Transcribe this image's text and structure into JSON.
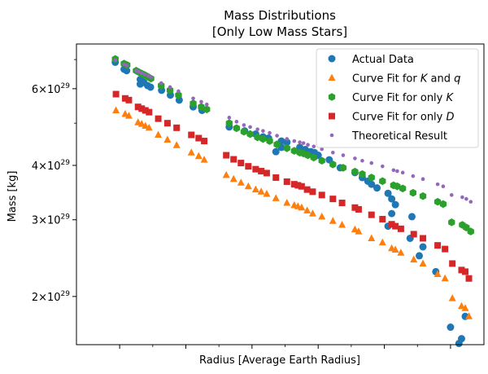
{
  "chart_data": {
    "type": "scatter",
    "title_lines": [
      "Mass Distributions",
      "[Only Low Mass Stars]"
    ],
    "xlabel": "Radius [Average Earth Radius]",
    "ylabel": "Mass [kg]",
    "y_scale": "log",
    "xlim": [
      0.0,
      1.0
    ],
    "ylim": [
      1.55e+29,
      7.6e+29
    ],
    "y_ticks": [
      {
        "value": 2e+29,
        "mantissa": "2",
        "exponent": "29"
      },
      {
        "value": 3e+29,
        "mantissa": "3",
        "exponent": "29"
      },
      {
        "value": 4e+29,
        "mantissa": "4",
        "exponent": "29"
      },
      {
        "value": 6e+29,
        "mantissa": "6",
        "exponent": "29"
      }
    ],
    "y_minor_ticks": [
      5e+29,
      7e+29
    ],
    "x_ticks": [
      0.06,
      0.24,
      0.42,
      0.6,
      0.78,
      0.96
    ],
    "x_minor_ticks": [
      0.15,
      0.33,
      0.51,
      0.69,
      0.87
    ],
    "times_symbol": "×",
    "base": "10",
    "legend_position": "top-right",
    "series": [
      {
        "name": "Actual Data",
        "legend_parts": [
          "Actual Data"
        ],
        "marker": "circle",
        "color": "#1f77b4",
        "points": [
          [
            0.048,
            6.9e+29
          ],
          [
            0.072,
            6.65e+29
          ],
          [
            0.079,
            6.6e+29
          ],
          [
            0.116,
            6.3e+29
          ],
          [
            0.12,
            6.25e+29
          ],
          [
            0.116,
            6.15e+29
          ],
          [
            0.126,
            6.2e+29
          ],
          [
            0.136,
            6.1e+29
          ],
          [
            0.144,
            6.05e+29
          ],
          [
            0.174,
            5.95e+29
          ],
          [
            0.198,
            5.8e+29
          ],
          [
            0.222,
            5.65e+29
          ],
          [
            0.26,
            5.45e+29
          ],
          [
            0.284,
            5.35e+29
          ],
          [
            0.358,
            4.9e+29
          ],
          [
            0.4,
            4.8e+29
          ],
          [
            0.43,
            4.72e+29
          ],
          [
            0.45,
            4.65e+29
          ],
          [
            0.465,
            4.62e+29
          ],
          [
            0.5,
            4.55e+29
          ],
          [
            0.515,
            4.52e+29
          ],
          [
            0.5,
            4.4e+29
          ],
          [
            0.485,
            4.3e+29
          ],
          [
            0.55,
            4.4e+29
          ],
          [
            0.565,
            4.35e+29
          ],
          [
            0.58,
            4.3e+29
          ],
          [
            0.59,
            4.28e+29
          ],
          [
            0.6,
            4.22e+29
          ],
          [
            0.63,
            4.12e+29
          ],
          [
            0.66,
            3.95e+29
          ],
          [
            0.7,
            3.85e+29
          ],
          [
            0.72,
            3.75e+29
          ],
          [
            0.735,
            3.68e+29
          ],
          [
            0.745,
            3.62e+29
          ],
          [
            0.76,
            3.55e+29
          ],
          [
            0.79,
            3.45e+29
          ],
          [
            0.8,
            3.35e+29
          ],
          [
            0.81,
            3.25e+29
          ],
          [
            0.8,
            3.1e+29
          ],
          [
            0.79,
            2.9e+29
          ],
          [
            0.855,
            3.05e+29
          ],
          [
            0.85,
            2.72e+29
          ],
          [
            0.885,
            2.6e+29
          ],
          [
            0.875,
            2.48e+29
          ],
          [
            0.92,
            2.28e+29
          ],
          [
            0.96,
            1.7e+29
          ],
          [
            0.983,
            1.56e+29
          ],
          [
            0.99,
            1.6e+29
          ],
          [
            1.0,
            1.8e+29
          ]
        ]
      },
      {
        "name": "Curve Fit for K and q",
        "legend_parts": [
          "Curve Fit for ",
          "K",
          " and ",
          "q"
        ],
        "marker": "triangle",
        "color": "#ff7f0e",
        "points": [
          [
            0.05,
            5.35e+29
          ],
          [
            0.075,
            5.25e+29
          ],
          [
            0.085,
            5.2e+29
          ],
          [
            0.11,
            5.02e+29
          ],
          [
            0.12,
            4.98e+29
          ],
          [
            0.13,
            4.93e+29
          ],
          [
            0.14,
            4.88e+29
          ],
          [
            0.165,
            4.7e+29
          ],
          [
            0.19,
            4.58e+29
          ],
          [
            0.215,
            4.45e+29
          ],
          [
            0.255,
            4.28e+29
          ],
          [
            0.275,
            4.2e+29
          ],
          [
            0.29,
            4.12e+29
          ],
          [
            0.35,
            3.8e+29
          ],
          [
            0.37,
            3.72e+29
          ],
          [
            0.39,
            3.65e+29
          ],
          [
            0.41,
            3.58e+29
          ],
          [
            0.43,
            3.52e+29
          ],
          [
            0.445,
            3.48e+29
          ],
          [
            0.46,
            3.44e+29
          ],
          [
            0.485,
            3.36e+29
          ],
          [
            0.515,
            3.28e+29
          ],
          [
            0.535,
            3.24e+29
          ],
          [
            0.545,
            3.22e+29
          ],
          [
            0.555,
            3.2e+29
          ],
          [
            0.57,
            3.15e+29
          ],
          [
            0.585,
            3.1e+29
          ],
          [
            0.61,
            3.05e+29
          ],
          [
            0.64,
            2.98e+29
          ],
          [
            0.665,
            2.92e+29
          ],
          [
            0.7,
            2.85e+29
          ],
          [
            0.71,
            2.82e+29
          ],
          [
            0.745,
            2.72e+29
          ],
          [
            0.775,
            2.66e+29
          ],
          [
            0.8,
            2.58e+29
          ],
          [
            0.81,
            2.56e+29
          ],
          [
            0.825,
            2.52e+29
          ],
          [
            0.86,
            2.43e+29
          ],
          [
            0.885,
            2.38e+29
          ],
          [
            0.925,
            2.25e+29
          ],
          [
            0.945,
            2.2e+29
          ],
          [
            0.965,
            1.98e+29
          ],
          [
            0.99,
            1.9e+29
          ],
          [
            1.0,
            1.88e+29
          ],
          [
            1.01,
            1.8e+29
          ]
        ]
      },
      {
        "name": "Curve Fit for only K",
        "legend_parts": [
          "Curve Fit for only ",
          "K"
        ],
        "marker": "hexagon",
        "color": "#2ca02c",
        "points": [
          [
            0.048,
            7.02e+29
          ],
          [
            0.072,
            6.85e+29
          ],
          [
            0.08,
            6.8e+29
          ],
          [
            0.105,
            6.6e+29
          ],
          [
            0.112,
            6.55e+29
          ],
          [
            0.12,
            6.5e+29
          ],
          [
            0.128,
            6.45e+29
          ],
          [
            0.138,
            6.38e+29
          ],
          [
            0.145,
            6.33e+29
          ],
          [
            0.173,
            6.1e+29
          ],
          [
            0.197,
            5.95e+29
          ],
          [
            0.22,
            5.8e+29
          ],
          [
            0.26,
            5.55e+29
          ],
          [
            0.282,
            5.45e+29
          ],
          [
            0.297,
            5.38e+29
          ],
          [
            0.358,
            5e+29
          ],
          [
            0.378,
            4.87e+29
          ],
          [
            0.398,
            4.78e+29
          ],
          [
            0.415,
            4.72e+29
          ],
          [
            0.435,
            4.64e+29
          ],
          [
            0.45,
            4.6e+29
          ],
          [
            0.468,
            4.55e+29
          ],
          [
            0.488,
            4.47e+29
          ],
          [
            0.515,
            4.38e+29
          ],
          [
            0.535,
            4.32e+29
          ],
          [
            0.55,
            4.28e+29
          ],
          [
            0.56,
            4.26e+29
          ],
          [
            0.572,
            4.22e+29
          ],
          [
            0.588,
            4.17e+29
          ],
          [
            0.61,
            4.1e+29
          ],
          [
            0.64,
            4.02e+29
          ],
          [
            0.668,
            3.95e+29
          ],
          [
            0.7,
            3.87e+29
          ],
          [
            0.72,
            3.82e+29
          ],
          [
            0.745,
            3.75e+29
          ],
          [
            0.775,
            3.68e+29
          ],
          [
            0.805,
            3.6e+29
          ],
          [
            0.815,
            3.58e+29
          ],
          [
            0.83,
            3.54e+29
          ],
          [
            0.858,
            3.46e+29
          ],
          [
            0.885,
            3.4e+29
          ],
          [
            0.925,
            3.3e+29
          ],
          [
            0.94,
            3.26e+29
          ],
          [
            0.963,
            2.96e+29
          ],
          [
            0.992,
            2.92e+29
          ],
          [
            1.003,
            2.88e+29
          ],
          [
            1.015,
            2.82e+29
          ]
        ]
      },
      {
        "name": "Curve Fit for only D",
        "legend_parts": [
          "Curve Fit for only ",
          "D"
        ],
        "marker": "square",
        "color": "#d62728",
        "points": [
          [
            0.05,
            5.83e+29
          ],
          [
            0.075,
            5.7e+29
          ],
          [
            0.085,
            5.65e+29
          ],
          [
            0.11,
            5.45e+29
          ],
          [
            0.12,
            5.4e+29
          ],
          [
            0.13,
            5.35e+29
          ],
          [
            0.14,
            5.3e+29
          ],
          [
            0.165,
            5.12e+29
          ],
          [
            0.19,
            5e+29
          ],
          [
            0.215,
            4.88e+29
          ],
          [
            0.255,
            4.7e+29
          ],
          [
            0.275,
            4.62e+29
          ],
          [
            0.29,
            4.55e+29
          ],
          [
            0.35,
            4.22e+29
          ],
          [
            0.37,
            4.13e+29
          ],
          [
            0.39,
            4.05e+29
          ],
          [
            0.41,
            3.98e+29
          ],
          [
            0.43,
            3.92e+29
          ],
          [
            0.445,
            3.88e+29
          ],
          [
            0.46,
            3.84e+29
          ],
          [
            0.485,
            3.75e+29
          ],
          [
            0.515,
            3.67e+29
          ],
          [
            0.535,
            3.62e+29
          ],
          [
            0.545,
            3.6e+29
          ],
          [
            0.555,
            3.58e+29
          ],
          [
            0.57,
            3.52e+29
          ],
          [
            0.585,
            3.48e+29
          ],
          [
            0.61,
            3.42e+29
          ],
          [
            0.64,
            3.35e+29
          ],
          [
            0.665,
            3.28e+29
          ],
          [
            0.7,
            3.2e+29
          ],
          [
            0.71,
            3.17e+29
          ],
          [
            0.745,
            3.08e+29
          ],
          [
            0.775,
            3.01e+29
          ],
          [
            0.8,
            2.93e+29
          ],
          [
            0.81,
            2.9e+29
          ],
          [
            0.825,
            2.86e+29
          ],
          [
            0.86,
            2.78e+29
          ],
          [
            0.885,
            2.72e+29
          ],
          [
            0.925,
            2.62e+29
          ],
          [
            0.945,
            2.57e+29
          ],
          [
            0.965,
            2.38e+29
          ],
          [
            0.99,
            2.3e+29
          ],
          [
            1.0,
            2.28e+29
          ],
          [
            1.01,
            2.2e+29
          ]
        ]
      },
      {
        "name": "Theoretical Result",
        "legend_parts": [
          "Theoretical Result"
        ],
        "marker": "dot",
        "color": "#9467bd",
        "points": [
          [
            0.048,
            6.98e+29
          ],
          [
            0.072,
            6.83e+29
          ],
          [
            0.08,
            6.78e+29
          ],
          [
            0.105,
            6.6e+29
          ],
          [
            0.112,
            6.56e+29
          ],
          [
            0.12,
            6.52e+29
          ],
          [
            0.128,
            6.48e+29
          ],
          [
            0.138,
            6.42e+29
          ],
          [
            0.145,
            6.38e+29
          ],
          [
            0.173,
            6.18e+29
          ],
          [
            0.197,
            6.05e+29
          ],
          [
            0.22,
            5.92e+29
          ],
          [
            0.26,
            5.7e+29
          ],
          [
            0.282,
            5.6e+29
          ],
          [
            0.297,
            5.52e+29
          ],
          [
            0.358,
            5.15e+29
          ],
          [
            0.378,
            5.04e+29
          ],
          [
            0.398,
            4.95e+29
          ],
          [
            0.415,
            4.9e+29
          ],
          [
            0.435,
            4.84e+29
          ],
          [
            0.45,
            4.8e+29
          ],
          [
            0.468,
            4.75e+29
          ],
          [
            0.488,
            4.68e+29
          ],
          [
            0.515,
            4.6e+29
          ],
          [
            0.535,
            4.55e+29
          ],
          [
            0.55,
            4.52e+29
          ],
          [
            0.56,
            4.5e+29
          ],
          [
            0.572,
            4.46e+29
          ],
          [
            0.588,
            4.42e+29
          ],
          [
            0.61,
            4.36e+29
          ],
          [
            0.64,
            4.28e+29
          ],
          [
            0.668,
            4.22e+29
          ],
          [
            0.7,
            4.15e+29
          ],
          [
            0.72,
            4.1e+29
          ],
          [
            0.745,
            4.05e+29
          ],
          [
            0.775,
            3.98e+29
          ],
          [
            0.805,
            3.9e+29
          ],
          [
            0.815,
            3.88e+29
          ],
          [
            0.83,
            3.85e+29
          ],
          [
            0.858,
            3.78e+29
          ],
          [
            0.885,
            3.72e+29
          ],
          [
            0.925,
            3.62e+29
          ],
          [
            0.94,
            3.58e+29
          ],
          [
            0.963,
            3.42e+29
          ],
          [
            0.992,
            3.38e+29
          ],
          [
            1.003,
            3.35e+29
          ],
          [
            1.015,
            3.3e+29
          ]
        ]
      }
    ]
  }
}
